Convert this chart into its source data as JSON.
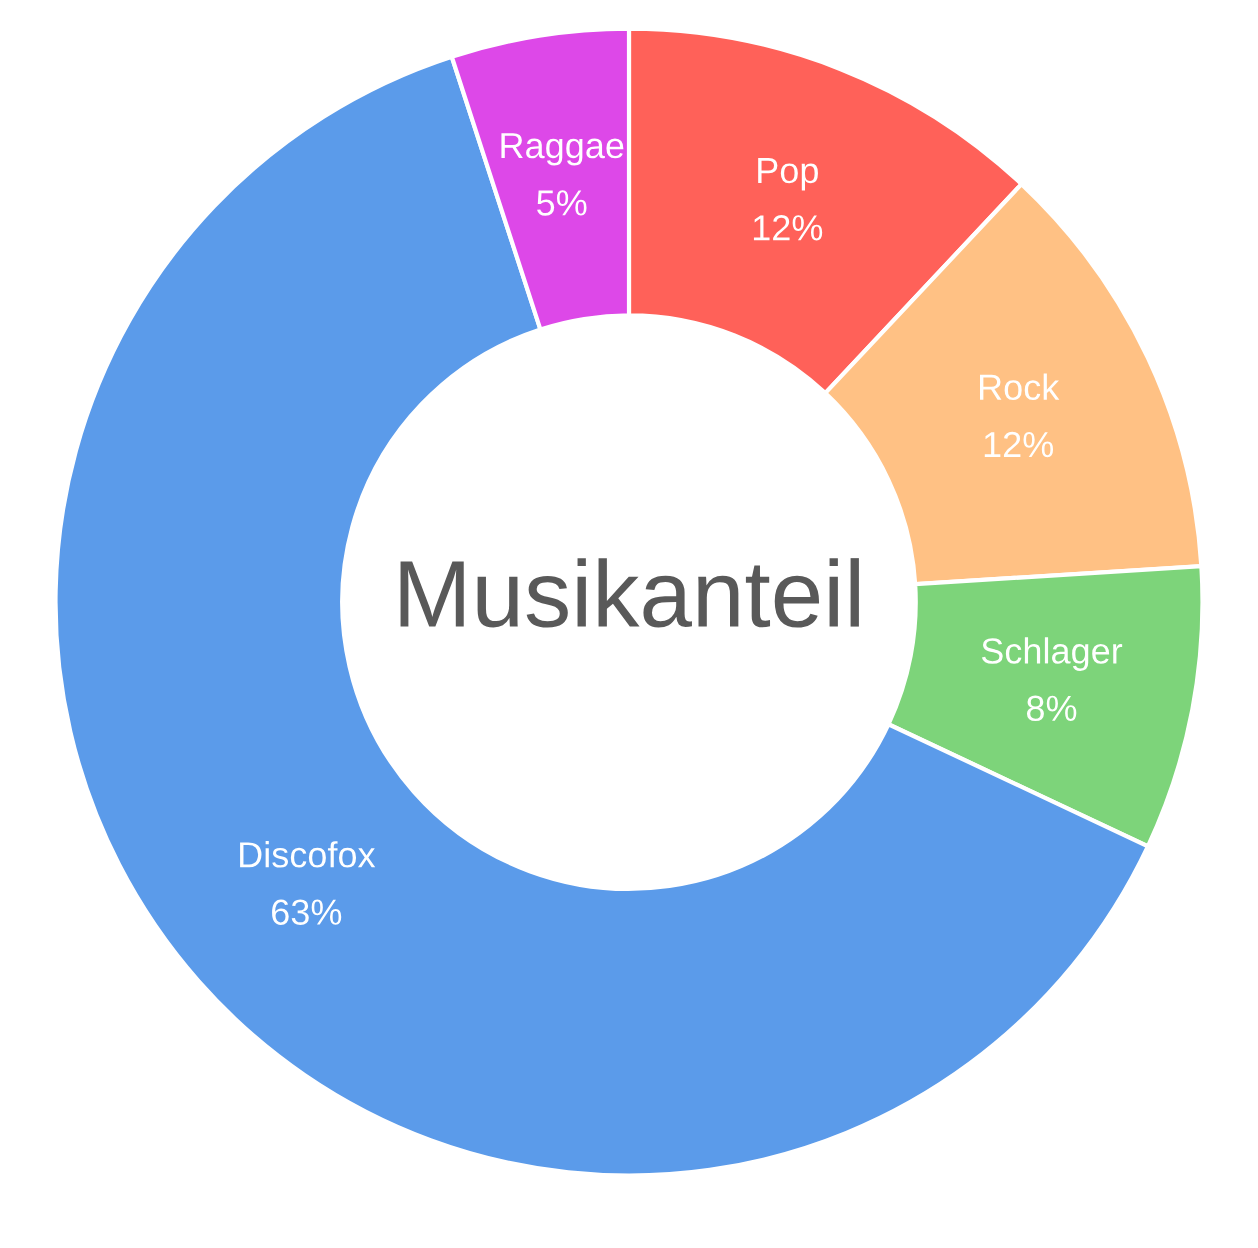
{
  "chart_data": {
    "type": "donut",
    "title": "Musikanteil",
    "categories": [
      "Pop",
      "Rock",
      "Schlager",
      "Discofox",
      "Raggae"
    ],
    "values": [
      12,
      12,
      8,
      63,
      5
    ],
    "colors": [
      "#ff6159",
      "#ffc184",
      "#7dd47a",
      "#5b9bea",
      "#dd48e8"
    ],
    "value_labels": [
      "12%",
      "12%",
      "8%",
      "63%",
      "5%"
    ],
    "legend": false
  }
}
